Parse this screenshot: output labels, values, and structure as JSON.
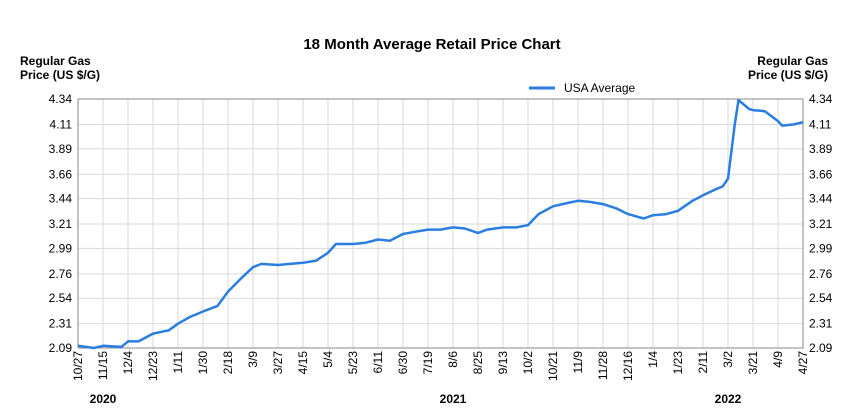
{
  "chart_data": {
    "type": "line",
    "title": "18 Month Average Retail Price Chart",
    "ylabel_left": [
      "Regular Gas",
      "Price (US $/G)"
    ],
    "ylabel_right": [
      "Regular Gas",
      "Price (US $/G)"
    ],
    "ylim": [
      2.09,
      4.34
    ],
    "y_ticks": [
      "4.34",
      "4.11",
      "3.89",
      "3.66",
      "3.44",
      "3.21",
      "2.99",
      "2.76",
      "2.54",
      "2.31",
      "2.09"
    ],
    "x_ticks": [
      "10/27",
      "11/15",
      "12/4",
      "12/23",
      "1/11",
      "1/30",
      "2/18",
      "3/9",
      "3/27",
      "4/15",
      "5/4",
      "5/23",
      "6/11",
      "6/30",
      "7/19",
      "8/6",
      "8/25",
      "9/13",
      "10/2",
      "10/21",
      "11/9",
      "11/28",
      "12/16",
      "1/4",
      "1/23",
      "2/11",
      "3/2",
      "3/21",
      "4/9",
      "4/27"
    ],
    "years": [
      {
        "label": "2020",
        "tick": "11/15"
      },
      {
        "label": "2021",
        "tick": "8/6"
      },
      {
        "label": "2022",
        "tick": "3/2"
      }
    ],
    "legend": {
      "position": "top-right",
      "entries": [
        "USA Average"
      ]
    },
    "grid": true,
    "colors": {
      "series": "#2a7de1",
      "grid": "#d9d9d9",
      "frame": "#888888"
    },
    "series": [
      {
        "name": "USA Average",
        "x": [
          "2020-10-27",
          "2020-11-08",
          "2020-11-15",
          "2020-11-29",
          "2020-12-04",
          "2020-12-12",
          "2020-12-23",
          "2021-01-04",
          "2021-01-11",
          "2021-01-20",
          "2021-01-30",
          "2021-02-10",
          "2021-02-18",
          "2021-02-28",
          "2021-03-09",
          "2021-03-15",
          "2021-03-27",
          "2021-04-05",
          "2021-04-15",
          "2021-04-25",
          "2021-05-04",
          "2021-05-10",
          "2021-05-23",
          "2021-06-01",
          "2021-06-11",
          "2021-06-20",
          "2021-06-30",
          "2021-07-09",
          "2021-07-19",
          "2021-07-28",
          "2021-08-06",
          "2021-08-15",
          "2021-08-25",
          "2021-09-01",
          "2021-09-13",
          "2021-09-23",
          "2021-10-02",
          "2021-10-10",
          "2021-10-21",
          "2021-11-01",
          "2021-11-09",
          "2021-11-18",
          "2021-11-28",
          "2021-12-08",
          "2021-12-16",
          "2021-12-28",
          "2022-01-04",
          "2022-01-14",
          "2022-01-23",
          "2022-02-03",
          "2022-02-11",
          "2022-02-20",
          "2022-02-26",
          "2022-03-02",
          "2022-03-07",
          "2022-03-10",
          "2022-03-18",
          "2022-03-21",
          "2022-03-30",
          "2022-04-09",
          "2022-04-12",
          "2022-04-20",
          "2022-04-27"
        ],
        "values": [
          2.11,
          2.09,
          2.11,
          2.1,
          2.15,
          2.15,
          2.22,
          2.25,
          2.31,
          2.37,
          2.42,
          2.47,
          2.6,
          2.72,
          2.82,
          2.85,
          2.84,
          2.85,
          2.86,
          2.88,
          2.95,
          3.03,
          3.03,
          3.04,
          3.07,
          3.06,
          3.12,
          3.14,
          3.16,
          3.16,
          3.18,
          3.17,
          3.13,
          3.16,
          3.18,
          3.18,
          3.2,
          3.3,
          3.37,
          3.4,
          3.42,
          3.41,
          3.39,
          3.35,
          3.3,
          3.26,
          3.29,
          3.3,
          3.33,
          3.42,
          3.47,
          3.52,
          3.55,
          3.62,
          4.1,
          4.33,
          4.25,
          4.24,
          4.23,
          4.14,
          4.1,
          4.11,
          4.13
        ]
      }
    ]
  }
}
